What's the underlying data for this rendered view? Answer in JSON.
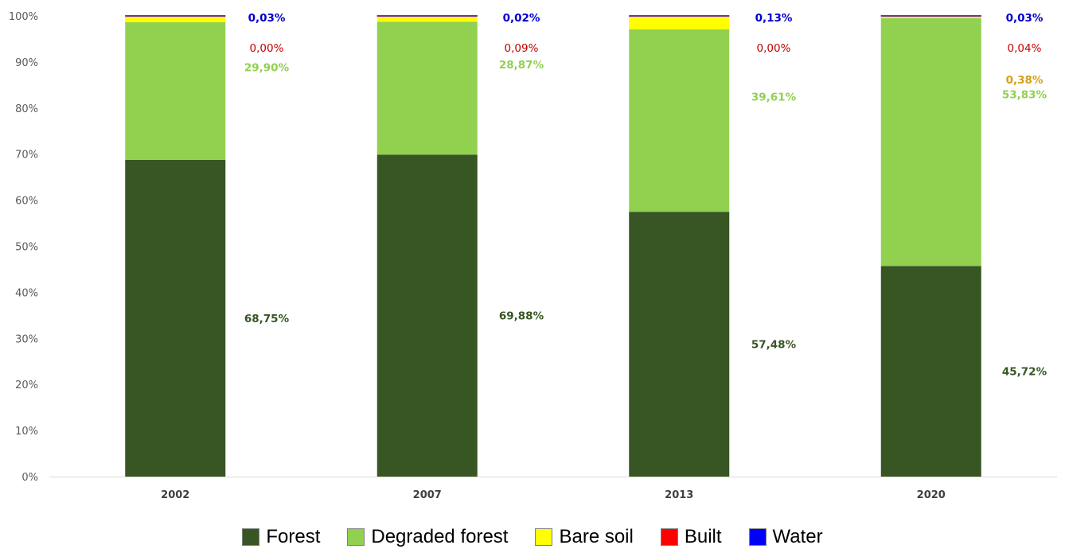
{
  "chart_data": {
    "type": "bar",
    "stacked": true,
    "categories": [
      "2002",
      "2007",
      "2013",
      "2020"
    ],
    "y_ticks": [
      "0%",
      "10%",
      "20%",
      "30%",
      "40%",
      "50%",
      "60%",
      "70%",
      "80%",
      "90%",
      "100%"
    ],
    "ylim": [
      0,
      100
    ],
    "grid": false,
    "legend_position": "bottom",
    "series": [
      {
        "name": "Forest",
        "color": "#375623",
        "label_color": "#375623",
        "values": [
          68.75,
          69.88,
          57.48,
          45.72
        ],
        "labels": [
          "68,75%",
          "69,88%",
          "57,48%",
          "45,72%"
        ]
      },
      {
        "name": "Degraded forest",
        "color": "#92D050",
        "label_color": "#92D050",
        "values": [
          29.9,
          28.87,
          39.61,
          53.83
        ],
        "labels": [
          "29,90%",
          "28,87%",
          "39,61%",
          "53,83%"
        ]
      },
      {
        "name": "Bare soil",
        "color": "#FFFF00",
        "label_color": "#D4A017",
        "values": [
          1.29,
          1.14,
          2.78,
          0.38
        ],
        "labels": [
          "",
          "",
          "",
          "0,38%"
        ]
      },
      {
        "name": "Built",
        "color": "#FF0000",
        "label_color": "#C00000",
        "values": [
          0.0,
          0.09,
          0.0,
          0.04
        ],
        "labels": [
          "0,00%",
          "0,09%",
          "0,00%",
          "0,04%"
        ]
      },
      {
        "name": "Water",
        "color": "#0000FF",
        "label_color": "#0000CC",
        "values": [
          0.03,
          0.02,
          0.13,
          0.03
        ],
        "labels": [
          "0,03%",
          "0,02%",
          "0,13%",
          "0,03%"
        ]
      }
    ]
  }
}
